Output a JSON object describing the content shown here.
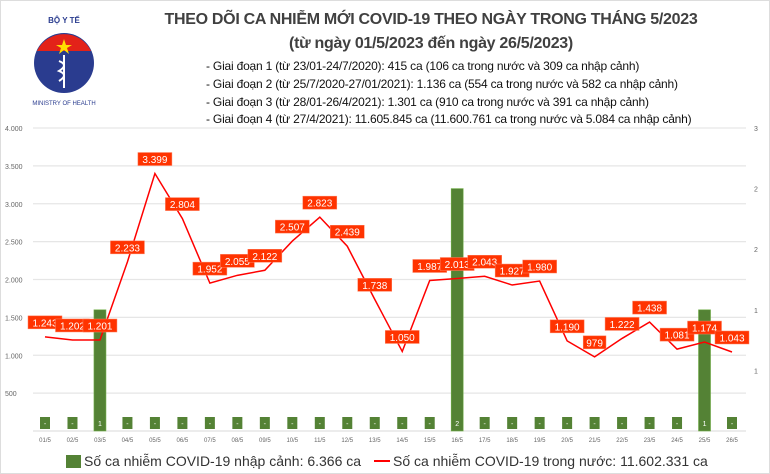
{
  "header": {
    "logo_text": "BỘ Y TẾ · MINISTRY OF HEALTH",
    "title": "THEO DÕI CA NHIỄM MỚI COVID-19 THEO NGÀY TRONG THÁNG 5/2023",
    "subtitle": "(từ ngày 01/5/2023 đến ngày 26/5/2023)",
    "phases": [
      "- Giai đoạn 1 (từ 23/01-24/7/2020): 415 ca (106 ca trong nước và 309 ca nhập cảnh)",
      "- Giai đoạn 2 (từ 25/7/2020-27/01/2021): 1.136 ca (554 ca trong nước và 582 ca nhập cảnh)",
      "- Giai đoạn 3 (từ 28/01-26/4/2021): 1.301 ca (910 ca trong nước và 391 ca nhập cảnh)",
      "- Giai đoạn 4 (từ 27/4/2021): 11.605.845 ca (11.600.761 ca trong nước và 5.084 ca nhập cảnh)"
    ]
  },
  "chart_data": {
    "type": "bar+line",
    "categories": [
      "01/5",
      "02/5",
      "03/5",
      "04/5",
      "05/5",
      "06/5",
      "07/5",
      "08/5",
      "09/5",
      "10/5",
      "11/5",
      "12/5",
      "13/5",
      "14/5",
      "15/5",
      "16/5",
      "17/5",
      "18/5",
      "19/5",
      "20/5",
      "21/5",
      "22/5",
      "23/5",
      "24/5",
      "25/5",
      "26/5"
    ],
    "series": [
      {
        "name": "Số ca nhiễm COVID-19 nhập cảnh: 6.366 ca",
        "type": "bar",
        "axis": "right",
        "color": "#548235",
        "values": [
          0,
          0,
          1,
          0,
          0,
          0,
          0,
          0,
          0,
          0,
          0,
          0,
          0,
          0,
          0,
          2,
          0,
          0,
          0,
          0,
          0,
          0,
          0,
          0,
          1,
          0
        ],
        "labels": [
          "-",
          "-",
          "1",
          "-",
          "-",
          "-",
          "-",
          "-",
          "-",
          "-",
          "-",
          "-",
          "-",
          "-",
          "-",
          "2",
          "-",
          "-",
          "-",
          "-",
          "-",
          "-",
          "-",
          "-",
          "1",
          "-"
        ]
      },
      {
        "name": "Số ca nhiễm COVID-19 trong nước: 11.602.331 ca",
        "type": "line",
        "axis": "left",
        "color": "#ff0000",
        "label_bg": "#ff3300",
        "values": [
          1243,
          1202,
          1201,
          2233,
          3399,
          2804,
          1952,
          2055,
          2122,
          2507,
          2823,
          2439,
          1738,
          1050,
          1987,
          2013,
          2043,
          1927,
          1980,
          1190,
          979,
          1222,
          1438,
          1081,
          1174,
          1043
        ],
        "labels": [
          "1.243",
          "1.202",
          "1.201",
          "2.233",
          "3.399",
          "2.804",
          "1.952",
          "2.055",
          "2.122",
          "2.507",
          "2.823",
          "2.439",
          "1.738",
          "1.050",
          "1.987",
          "2.013",
          "2.043",
          "1.927",
          "1.980",
          "1.190",
          "979",
          "1.222",
          "1.438",
          "1.081",
          "1.174",
          "1.043"
        ]
      }
    ],
    "left_axis": {
      "ylim": [
        0,
        4000
      ],
      "ticks": [
        "4.000",
        "3.500",
        "3.000",
        "2.500",
        "2.000",
        "1.500",
        "1.000",
        "500"
      ]
    },
    "right_axis": {
      "ylim": [
        0,
        2.5
      ],
      "ticks": [
        "3",
        "2",
        "2",
        "1",
        "1"
      ]
    },
    "grid": true,
    "legend_position": "bottom"
  }
}
